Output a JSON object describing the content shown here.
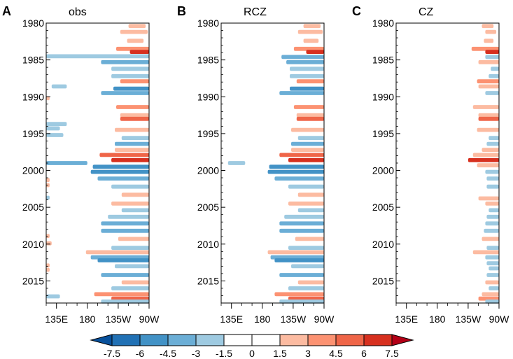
{
  "chart_data": {
    "type": "heatmap",
    "description_units": "longitude vs year (Hovmoller)",
    "year_range": [
      1980,
      2018
    ],
    "lon_range": [
      120,
      270
    ],
    "y_ticks": [
      "1980",
      "1985",
      "1990",
      "1995",
      "2000",
      "2005",
      "2010",
      "2015"
    ],
    "y_tick_values": [
      1980,
      1985,
      1990,
      1995,
      2000,
      2005,
      2010,
      2015
    ],
    "x_ticks": [
      "135E",
      "180",
      "135W",
      "90W"
    ],
    "x_tick_values": [
      135,
      180,
      225,
      270
    ],
    "panels": [
      {
        "letter": "A",
        "title": "obs",
        "bands": [
          {
            "y": 1980.4,
            "v": 2.5,
            "x0": 240,
            "x1": 265
          },
          {
            "y": 1981.2,
            "v": 2.0,
            "x0": 228,
            "x1": 268
          },
          {
            "y": 1982.4,
            "v": 1.8,
            "x0": 238,
            "x1": 262
          },
          {
            "y": 1983.5,
            "v": 4.0,
            "x0": 222,
            "x1": 270
          },
          {
            "y": 1983.9,
            "v": 7.0,
            "x0": 242,
            "x1": 270
          },
          {
            "y": 1984.5,
            "v": -2.5,
            "x0": 120,
            "x1": 270
          },
          {
            "y": 1985.3,
            "v": -3.5,
            "x0": 200,
            "x1": 270
          },
          {
            "y": 1986.2,
            "v": -2.5,
            "x0": 215,
            "x1": 270
          },
          {
            "y": 1987.2,
            "v": -2.5,
            "x0": 215,
            "x1": 270
          },
          {
            "y": 1987.9,
            "v": 3.5,
            "x0": 228,
            "x1": 270
          },
          {
            "y": 1988.6,
            "v": -2.5,
            "x0": 128,
            "x1": 150
          },
          {
            "y": 1988.9,
            "v": -4.5,
            "x0": 218,
            "x1": 270
          },
          {
            "y": 1989.5,
            "v": -3.0,
            "x0": 200,
            "x1": 270
          },
          {
            "y": 1990.2,
            "v": 2.0,
            "x0": 120,
            "x1": 125
          },
          {
            "y": 1991.4,
            "v": 3.5,
            "x0": 222,
            "x1": 270
          },
          {
            "y": 1992.5,
            "v": 2.5,
            "x0": 228,
            "x1": 270
          },
          {
            "y": 1993.0,
            "v": 5.5,
            "x0": 228,
            "x1": 270
          },
          {
            "y": 1993.7,
            "v": -2.5,
            "x0": 120,
            "x1": 150
          },
          {
            "y": 1994.3,
            "v": -2.0,
            "x0": 120,
            "x1": 140
          },
          {
            "y": 1994.5,
            "v": 2.5,
            "x0": 220,
            "x1": 270
          },
          {
            "y": 1995.2,
            "v": -2.5,
            "x0": 120,
            "x1": 145
          },
          {
            "y": 1995.6,
            "v": -2.0,
            "x0": 230,
            "x1": 270
          },
          {
            "y": 1996.4,
            "v": -3.0,
            "x0": 220,
            "x1": 270
          },
          {
            "y": 1997.2,
            "v": 3.0,
            "x0": 220,
            "x1": 270
          },
          {
            "y": 1997.9,
            "v": 5.0,
            "x0": 198,
            "x1": 270
          },
          {
            "y": 1998.6,
            "v": 7.5,
            "x0": 215,
            "x1": 270
          },
          {
            "y": 1999.0,
            "v": -3.0,
            "x0": 120,
            "x1": 180
          },
          {
            "y": 1999.5,
            "v": -5.5,
            "x0": 188,
            "x1": 270
          },
          {
            "y": 2000.2,
            "v": -4.5,
            "x0": 185,
            "x1": 270
          },
          {
            "y": 2001.1,
            "v": -3.0,
            "x0": 195,
            "x1": 270
          },
          {
            "y": 2001.3,
            "v": 2.0,
            "x0": 120,
            "x1": 125
          },
          {
            "y": 2002.0,
            "v": 2.5,
            "x0": 120,
            "x1": 125
          },
          {
            "y": 2002.2,
            "v": -2.5,
            "x0": 215,
            "x1": 270
          },
          {
            "y": 2003.3,
            "v": 2.0,
            "x0": 230,
            "x1": 270
          },
          {
            "y": 2003.7,
            "v": -2.5,
            "x0": 120,
            "x1": 125
          },
          {
            "y": 2004.5,
            "v": 2.5,
            "x0": 215,
            "x1": 270
          },
          {
            "y": 2005.4,
            "v": -2.0,
            "x0": 230,
            "x1": 270
          },
          {
            "y": 2006.3,
            "v": -2.5,
            "x0": 210,
            "x1": 270
          },
          {
            "y": 2007.2,
            "v": -3.0,
            "x0": 200,
            "x1": 270
          },
          {
            "y": 2008.2,
            "v": -3.5,
            "x0": 200,
            "x1": 270
          },
          {
            "y": 2008.9,
            "v": 2.5,
            "x0": 120,
            "x1": 125
          },
          {
            "y": 2009.3,
            "v": 3.0,
            "x0": 225,
            "x1": 270
          },
          {
            "y": 2009.9,
            "v": 2.5,
            "x0": 120,
            "x1": 128
          },
          {
            "y": 2010.5,
            "v": -2.5,
            "x0": 215,
            "x1": 270
          },
          {
            "y": 2011.1,
            "v": 3.0,
            "x0": 178,
            "x1": 270
          },
          {
            "y": 2011.8,
            "v": -3.0,
            "x0": 185,
            "x1": 270
          },
          {
            "y": 2012.2,
            "v": -5.0,
            "x0": 195,
            "x1": 270
          },
          {
            "y": 2012.9,
            "v": 2.0,
            "x0": 120,
            "x1": 125
          },
          {
            "y": 2013.0,
            "v": -2.0,
            "x0": 220,
            "x1": 270
          },
          {
            "y": 2013.5,
            "v": 2.0,
            "x0": 120,
            "x1": 125
          },
          {
            "y": 2014.2,
            "v": -3.0,
            "x0": 200,
            "x1": 270
          },
          {
            "y": 2015.2,
            "v": 2.0,
            "x0": 230,
            "x1": 270
          },
          {
            "y": 2016.0,
            "v": -2.0,
            "x0": 215,
            "x1": 270
          },
          {
            "y": 2016.8,
            "v": 3.5,
            "x0": 190,
            "x1": 270
          },
          {
            "y": 2017.1,
            "v": -2.5,
            "x0": 120,
            "x1": 140
          },
          {
            "y": 2017.4,
            "v": 5.5,
            "x0": 215,
            "x1": 270
          },
          {
            "y": 2017.8,
            "v": -2.5,
            "x0": 200,
            "x1": 270
          }
        ]
      },
      {
        "letter": "B",
        "title": "RCZ",
        "bands": [
          {
            "y": 1980.4,
            "v": 2.5,
            "x0": 240,
            "x1": 265
          },
          {
            "y": 1981.2,
            "v": 2.0,
            "x0": 232,
            "x1": 268
          },
          {
            "y": 1982.4,
            "v": 1.8,
            "x0": 240,
            "x1": 262
          },
          {
            "y": 1983.5,
            "v": 4.0,
            "x0": 226,
            "x1": 270
          },
          {
            "y": 1983.9,
            "v": 7.0,
            "x0": 244,
            "x1": 270
          },
          {
            "y": 1984.6,
            "v": -3.5,
            "x0": 208,
            "x1": 270
          },
          {
            "y": 1985.3,
            "v": -3.5,
            "x0": 215,
            "x1": 270
          },
          {
            "y": 1986.2,
            "v": -2.5,
            "x0": 220,
            "x1": 270
          },
          {
            "y": 1987.2,
            "v": -2.5,
            "x0": 220,
            "x1": 270
          },
          {
            "y": 1987.9,
            "v": 3.5,
            "x0": 230,
            "x1": 270
          },
          {
            "y": 1988.9,
            "v": -4.5,
            "x0": 220,
            "x1": 270
          },
          {
            "y": 1989.5,
            "v": -3.0,
            "x0": 205,
            "x1": 270
          },
          {
            "y": 1991.4,
            "v": 3.5,
            "x0": 226,
            "x1": 270
          },
          {
            "y": 1992.5,
            "v": 2.5,
            "x0": 230,
            "x1": 270
          },
          {
            "y": 1993.0,
            "v": 5.5,
            "x0": 230,
            "x1": 270
          },
          {
            "y": 1994.5,
            "v": 2.5,
            "x0": 222,
            "x1": 270
          },
          {
            "y": 1995.6,
            "v": -2.0,
            "x0": 232,
            "x1": 270
          },
          {
            "y": 1996.4,
            "v": -3.0,
            "x0": 222,
            "x1": 270
          },
          {
            "y": 1997.2,
            "v": 3.0,
            "x0": 222,
            "x1": 270
          },
          {
            "y": 1997.9,
            "v": 5.0,
            "x0": 205,
            "x1": 270
          },
          {
            "y": 1998.6,
            "v": 7.5,
            "x0": 218,
            "x1": 270
          },
          {
            "y": 1999.0,
            "v": -2.5,
            "x0": 130,
            "x1": 155
          },
          {
            "y": 1999.5,
            "v": -5.5,
            "x0": 190,
            "x1": 270
          },
          {
            "y": 2000.2,
            "v": -4.5,
            "x0": 188,
            "x1": 270
          },
          {
            "y": 2001.1,
            "v": -3.0,
            "x0": 198,
            "x1": 270
          },
          {
            "y": 2002.2,
            "v": -2.5,
            "x0": 218,
            "x1": 270
          },
          {
            "y": 2003.3,
            "v": 2.0,
            "x0": 232,
            "x1": 270
          },
          {
            "y": 2004.5,
            "v": 2.5,
            "x0": 218,
            "x1": 270
          },
          {
            "y": 2005.4,
            "v": -2.0,
            "x0": 232,
            "x1": 270
          },
          {
            "y": 2006.3,
            "v": -2.5,
            "x0": 212,
            "x1": 270
          },
          {
            "y": 2007.2,
            "v": -3.0,
            "x0": 205,
            "x1": 270
          },
          {
            "y": 2008.2,
            "v": -3.5,
            "x0": 205,
            "x1": 270
          },
          {
            "y": 2009.3,
            "v": 3.0,
            "x0": 228,
            "x1": 270
          },
          {
            "y": 2010.5,
            "v": -2.5,
            "x0": 218,
            "x1": 270
          },
          {
            "y": 2011.1,
            "v": 3.0,
            "x0": 188,
            "x1": 270
          },
          {
            "y": 2011.8,
            "v": -3.0,
            "x0": 192,
            "x1": 270
          },
          {
            "y": 2012.2,
            "v": -5.0,
            "x0": 198,
            "x1": 270
          },
          {
            "y": 2013.0,
            "v": -2.0,
            "x0": 222,
            "x1": 270
          },
          {
            "y": 2014.2,
            "v": -3.0,
            "x0": 205,
            "x1": 270
          },
          {
            "y": 2015.2,
            "v": 2.0,
            "x0": 232,
            "x1": 270
          },
          {
            "y": 2016.0,
            "v": -2.0,
            "x0": 218,
            "x1": 270
          },
          {
            "y": 2016.8,
            "v": 3.5,
            "x0": 198,
            "x1": 270
          },
          {
            "y": 2017.4,
            "v": 5.5,
            "x0": 218,
            "x1": 270
          },
          {
            "y": 2017.8,
            "v": -2.5,
            "x0": 205,
            "x1": 270
          }
        ]
      },
      {
        "letter": "C",
        "title": "CZ",
        "bands": [
          {
            "y": 1980.4,
            "v": 2.0,
            "x0": 245,
            "x1": 262
          },
          {
            "y": 1981.2,
            "v": 1.8,
            "x0": 250,
            "x1": 266
          },
          {
            "y": 1982.4,
            "v": 1.8,
            "x0": 248,
            "x1": 262
          },
          {
            "y": 1983.5,
            "v": 3.5,
            "x0": 230,
            "x1": 270
          },
          {
            "y": 1983.9,
            "v": 7.0,
            "x0": 250,
            "x1": 270
          },
          {
            "y": 1984.6,
            "v": -2.0,
            "x0": 250,
            "x1": 270
          },
          {
            "y": 1985.3,
            "v": 2.5,
            "x0": 240,
            "x1": 270
          },
          {
            "y": 1986.2,
            "v": -2.0,
            "x0": 258,
            "x1": 270
          },
          {
            "y": 1987.2,
            "v": -2.0,
            "x0": 255,
            "x1": 270
          },
          {
            "y": 1987.9,
            "v": 3.5,
            "x0": 238,
            "x1": 270
          },
          {
            "y": 1988.6,
            "v": 2.5,
            "x0": 240,
            "x1": 270
          },
          {
            "y": 1989.5,
            "v": -2.0,
            "x0": 250,
            "x1": 270
          },
          {
            "y": 1991.4,
            "v": 2.5,
            "x0": 232,
            "x1": 270
          },
          {
            "y": 1992.5,
            "v": 2.0,
            "x0": 240,
            "x1": 270
          },
          {
            "y": 1993.0,
            "v": 5.0,
            "x0": 240,
            "x1": 270
          },
          {
            "y": 1994.5,
            "v": 2.0,
            "x0": 238,
            "x1": 270
          },
          {
            "y": 1995.6,
            "v": -2.0,
            "x0": 255,
            "x1": 270
          },
          {
            "y": 1996.4,
            "v": -2.0,
            "x0": 252,
            "x1": 270
          },
          {
            "y": 1997.2,
            "v": 2.0,
            "x0": 245,
            "x1": 270
          },
          {
            "y": 1997.9,
            "v": 2.5,
            "x0": 232,
            "x1": 270
          },
          {
            "y": 1998.6,
            "v": 7.5,
            "x0": 225,
            "x1": 270
          },
          {
            "y": 1999.3,
            "v": 3.0,
            "x0": 238,
            "x1": 270
          },
          {
            "y": 2000.2,
            "v": -2.0,
            "x0": 250,
            "x1": 270
          },
          {
            "y": 2001.1,
            "v": -2.0,
            "x0": 252,
            "x1": 270
          },
          {
            "y": 2002.2,
            "v": -2.0,
            "x0": 252,
            "x1": 270
          },
          {
            "y": 2003.8,
            "v": 2.0,
            "x0": 240,
            "x1": 270
          },
          {
            "y": 2004.5,
            "v": 2.0,
            "x0": 250,
            "x1": 270
          },
          {
            "y": 2005.4,
            "v": -2.0,
            "x0": 255,
            "x1": 270
          },
          {
            "y": 2006.3,
            "v": -2.0,
            "x0": 252,
            "x1": 270
          },
          {
            "y": 2007.2,
            "v": -2.0,
            "x0": 250,
            "x1": 270
          },
          {
            "y": 2008.2,
            "v": -2.0,
            "x0": 248,
            "x1": 270
          },
          {
            "y": 2009.3,
            "v": 2.0,
            "x0": 245,
            "x1": 270
          },
          {
            "y": 2010.5,
            "v": -2.0,
            "x0": 252,
            "x1": 270
          },
          {
            "y": 2011.1,
            "v": 3.0,
            "x0": 232,
            "x1": 270
          },
          {
            "y": 2011.8,
            "v": -2.0,
            "x0": 250,
            "x1": 270
          },
          {
            "y": 2012.6,
            "v": -2.0,
            "x0": 252,
            "x1": 270
          },
          {
            "y": 2013.3,
            "v": -2.0,
            "x0": 255,
            "x1": 270
          },
          {
            "y": 2014.2,
            "v": -2.0,
            "x0": 252,
            "x1": 270
          },
          {
            "y": 2015.2,
            "v": 2.0,
            "x0": 250,
            "x1": 270
          },
          {
            "y": 2016.0,
            "v": -2.0,
            "x0": 255,
            "x1": 270
          },
          {
            "y": 2016.8,
            "v": 2.0,
            "x0": 245,
            "x1": 270
          },
          {
            "y": 2017.4,
            "v": 3.5,
            "x0": 240,
            "x1": 270
          },
          {
            "y": 2017.8,
            "v": -2.0,
            "x0": 250,
            "x1": 270
          }
        ]
      }
    ],
    "colorbar": {
      "levels": [
        "-7.5",
        "-6",
        "-4.5",
        "-3",
        "-1.5",
        "0",
        "1.5",
        "3",
        "4.5",
        "6",
        "7.5"
      ],
      "colors": [
        "#08519c",
        "#2171b5",
        "#4292c6",
        "#6baed6",
        "#9ecae1",
        "#ffffff",
        "#ffffff",
        "#fcbba1",
        "#fc9272",
        "#ef6548",
        "#d7301f",
        "#b30016"
      ]
    }
  }
}
